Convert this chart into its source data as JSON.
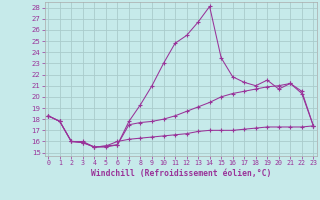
{
  "xlabel": "Windchill (Refroidissement éolien,°C)",
  "bg_color": "#c6eaea",
  "line_color": "#993399",
  "grid_color": "#aacccc",
  "x_ticks": [
    0,
    1,
    2,
    3,
    4,
    5,
    6,
    7,
    8,
    9,
    10,
    11,
    12,
    13,
    14,
    15,
    16,
    17,
    18,
    19,
    20,
    21,
    22,
    23
  ],
  "y_ticks": [
    15,
    16,
    17,
    18,
    19,
    20,
    21,
    22,
    23,
    24,
    25,
    26,
    27,
    28
  ],
  "xlim": [
    -0.3,
    23.3
  ],
  "ylim": [
    14.7,
    28.5
  ],
  "series": [
    {
      "x": [
        0,
        1,
        2,
        3,
        4,
        5,
        6,
        7,
        8,
        9,
        10,
        11,
        12,
        13,
        14,
        15,
        16,
        17,
        18,
        19,
        20,
        21,
        22,
        23
      ],
      "y": [
        18.3,
        17.8,
        16.0,
        16.0,
        15.5,
        15.5,
        15.7,
        17.8,
        19.3,
        21.0,
        23.0,
        24.8,
        25.5,
        26.7,
        28.1,
        23.5,
        21.8,
        21.3,
        21.0,
        21.5,
        20.7,
        21.2,
        20.3,
        17.4
      ]
    },
    {
      "x": [
        0,
        1,
        2,
        3,
        4,
        5,
        6,
        7,
        8,
        9,
        10,
        11,
        12,
        13,
        14,
        15,
        16,
        17,
        18,
        19,
        20,
        21,
        22,
        23
      ],
      "y": [
        18.3,
        17.8,
        16.0,
        15.9,
        15.5,
        15.6,
        15.7,
        17.5,
        17.7,
        17.8,
        18.0,
        18.3,
        18.7,
        19.1,
        19.5,
        20.0,
        20.3,
        20.5,
        20.7,
        20.9,
        21.0,
        21.2,
        20.5,
        17.4
      ]
    },
    {
      "x": [
        0,
        1,
        2,
        3,
        4,
        5,
        6,
        7,
        8,
        9,
        10,
        11,
        12,
        13,
        14,
        15,
        16,
        17,
        18,
        19,
        20,
        21,
        22,
        23
      ],
      "y": [
        18.3,
        17.8,
        16.0,
        15.9,
        15.5,
        15.6,
        16.0,
        16.2,
        16.3,
        16.4,
        16.5,
        16.6,
        16.7,
        16.9,
        17.0,
        17.0,
        17.0,
        17.1,
        17.2,
        17.3,
        17.3,
        17.3,
        17.3,
        17.4
      ]
    }
  ]
}
